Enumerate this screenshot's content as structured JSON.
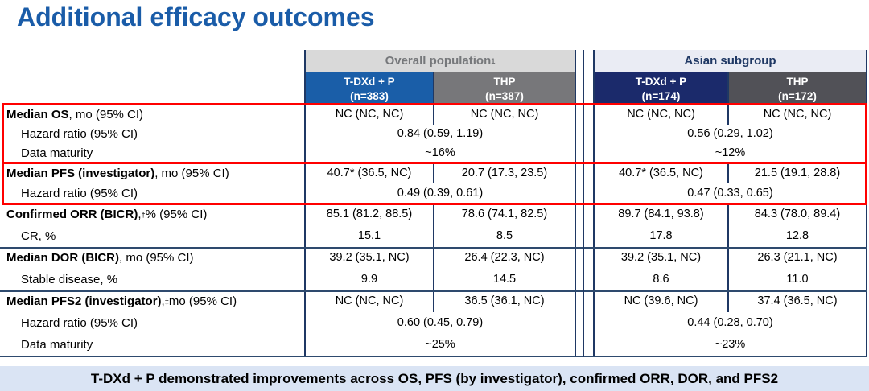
{
  "slide": {
    "title": "Additional efficacy outcomes",
    "banner": "T-DXd + P demonstrated improvements across OS, PFS (by investigator), confirmed ORR, DOR, and PFS2"
  },
  "colors": {
    "title_blue": "#1A5CA8",
    "overall_tdxd_blue": "#1A5EA8",
    "overall_thp_gray": "#77777A",
    "asian_tdxd_navy": "#1B2A6B",
    "asian_thp_gray": "#515157",
    "highlight_red": "#FF0000",
    "banner_bg": "#DAE4F4",
    "border_navy": "#1F3864"
  },
  "table": {
    "groups": [
      {
        "label": "Overall population",
        "sup": "1",
        "arms": [
          {
            "name": "T-DXd + P",
            "n": "(n=383)"
          },
          {
            "name": "THP",
            "n": "(n=387)"
          }
        ]
      },
      {
        "label": "Asian subgroup",
        "sup": "",
        "arms": [
          {
            "name": "T-DXd + P",
            "n": "(n=174)"
          },
          {
            "name": "THP",
            "n": "(n=172)"
          }
        ]
      }
    ],
    "rows": [
      {
        "label": {
          "bold": "Median OS",
          "mid": "",
          "sup": "",
          "rest": ", mo (95% CI)"
        },
        "overall": [
          "NC (NC, NC)",
          "NC (NC, NC)"
        ],
        "asian": [
          "NC (NC, NC)",
          "NC (NC, NC)"
        ]
      },
      {
        "label": {
          "bold": "",
          "mid": "",
          "sup": "",
          "rest": "Hazard ratio (95% CI)"
        },
        "overall": [
          "0.84 (0.59, 1.19)"
        ],
        "asian": [
          "0.56 (0.29, 1.02)"
        ]
      },
      {
        "label": {
          "bold": "",
          "mid": "",
          "sup": "",
          "rest": "Data maturity"
        },
        "overall": [
          "~16%"
        ],
        "asian": [
          "~12%"
        ]
      },
      {
        "label": {
          "bold": "Median PFS (investigator)",
          "mid": "",
          "sup": "",
          "rest": ", mo (95% CI)"
        },
        "overall": [
          "40.7* (36.5, NC)",
          "20.7 (17.3, 23.5)"
        ],
        "asian": [
          "40.7* (36.5, NC)",
          "21.5 (19.1, 28.8)"
        ]
      },
      {
        "label": {
          "bold": "",
          "mid": "",
          "sup": "",
          "rest": "Hazard ratio (95% CI)"
        },
        "overall": [
          "0.49 (0.39, 0.61)"
        ],
        "asian": [
          "0.47 (0.33, 0.65)"
        ]
      },
      {
        "label": {
          "bold": "Confirmed ORR (BICR)",
          "mid": ",",
          "sup": "†",
          "rest": " % (95% CI)"
        },
        "overall": [
          "85.1 (81.2, 88.5)",
          "78.6 (74.1, 82.5)"
        ],
        "asian": [
          "89.7 (84.1, 93.8)",
          "84.3 (78.0, 89.4)"
        ]
      },
      {
        "label": {
          "bold": "",
          "mid": "",
          "sup": "",
          "rest": "CR, %"
        },
        "overall": [
          "15.1",
          "8.5"
        ],
        "asian": [
          "17.8",
          "12.8"
        ]
      },
      {
        "label": {
          "bold": "Median DOR (BICR)",
          "mid": "",
          "sup": "",
          "rest": ", mo (95% CI)"
        },
        "overall": [
          "39.2 (35.1, NC)",
          "26.4 (22.3, NC)"
        ],
        "asian": [
          "39.2 (35.1, NC)",
          "26.3 (21.1, NC)"
        ]
      },
      {
        "label": {
          "bold": "",
          "mid": "",
          "sup": "",
          "rest": "Stable disease, %"
        },
        "overall": [
          "9.9",
          "14.5"
        ],
        "asian": [
          "8.6",
          "11.0"
        ]
      },
      {
        "label": {
          "bold": "Median PFS2 (investigator)",
          "mid": ",",
          "sup": "‡",
          "rest": " mo (95% CI)"
        },
        "overall": [
          "NC (NC, NC)",
          "36.5 (36.1, NC)"
        ],
        "asian": [
          "NC (39.6, NC)",
          "37.4 (36.5, NC)"
        ]
      },
      {
        "label": {
          "bold": "",
          "mid": "",
          "sup": "",
          "rest": "Hazard ratio (95% CI)"
        },
        "overall": [
          "0.60 (0.45, 0.79)"
        ],
        "asian": [
          "0.44 (0.28, 0.70)"
        ]
      },
      {
        "label": {
          "bold": "",
          "mid": "",
          "sup": "",
          "rest": "Data maturity"
        },
        "overall": [
          "~25%"
        ],
        "asian": [
          "~23%"
        ]
      }
    ]
  }
}
